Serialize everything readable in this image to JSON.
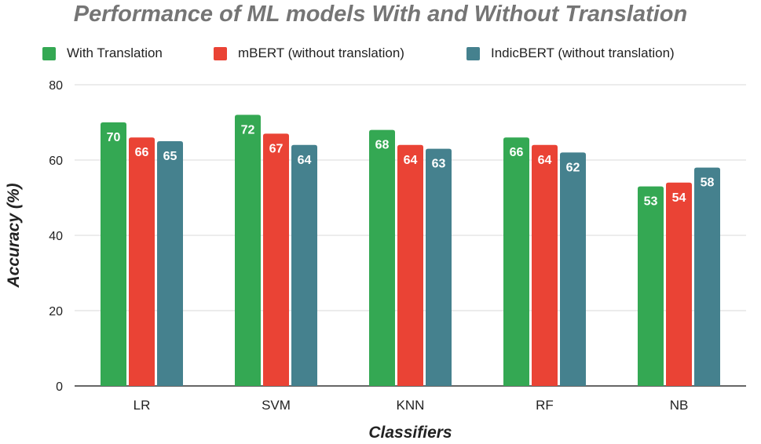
{
  "chart_data": {
    "type": "bar",
    "title": "Performance of ML models With and Without Translation",
    "xlabel": "Classifiers",
    "ylabel": "Accuracy (%)",
    "ylim": [
      0,
      80
    ],
    "yticks": [
      0,
      20,
      40,
      60,
      80
    ],
    "grid": true,
    "legend_position": "top",
    "categories": [
      "LR",
      "SVM",
      "KNN",
      "RF",
      "NB"
    ],
    "series": [
      {
        "name": "With Translation",
        "color": "#34a853",
        "values": [
          70,
          72,
          68,
          66,
          53
        ]
      },
      {
        "name": "mBERT (without translation)",
        "color": "#ea4335",
        "values": [
          66,
          67,
          64,
          64,
          54
        ]
      },
      {
        "name": "IndicBERT (without translation)",
        "color": "#45818e",
        "values": [
          65,
          64,
          63,
          62,
          58
        ]
      }
    ]
  }
}
